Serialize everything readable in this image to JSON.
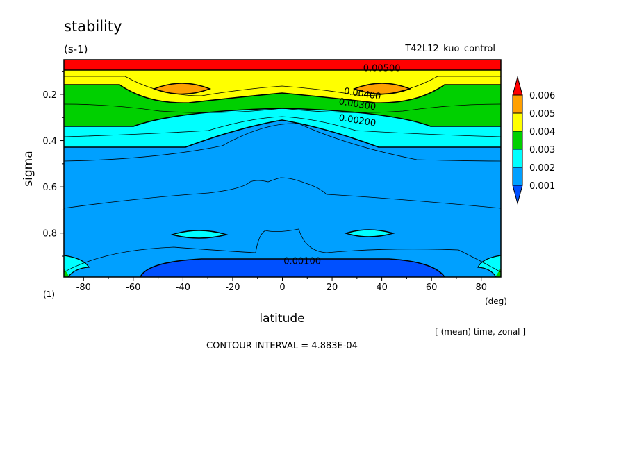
{
  "header": {
    "title": "stability",
    "units": "(s-1)",
    "run": "T42L12_kuo_control"
  },
  "footer": {
    "axis_unit_left": "(1)",
    "axis_unit_right": "(deg)",
    "mean_note": "[ (mean) time, zonal ]",
    "contour_interval": "CONTOUR INTERVAL = 4.883E-04"
  },
  "chart_data": {
    "type": "heatmap",
    "title": "stability",
    "units": "(s-1)",
    "xlabel": "latitude",
    "ylabel": "sigma",
    "xlim": [
      -87.9,
      87.9
    ],
    "ylim": [
      0.05,
      0.99
    ],
    "y_inverted": true,
    "x_ticks": [
      -80,
      -60,
      -40,
      -20,
      0,
      20,
      40,
      60,
      80
    ],
    "y_ticks": [
      0.2,
      0.4,
      0.6,
      0.8
    ],
    "y_tick_labels": [
      "0.2",
      "0.4",
      "0.6",
      "0.8"
    ],
    "x_tick_labels": [
      "-80",
      "-60",
      "-40",
      "-20",
      "0",
      "20",
      "40",
      "60",
      "80"
    ],
    "contour_interval": 0.0004883,
    "contour_labels": [
      {
        "text": "0.00500",
        "lat": 40,
        "sigma": 0.1
      },
      {
        "text": "0.00400",
        "lat": 32,
        "sigma": 0.21
      },
      {
        "text": "0.00300",
        "lat": 30,
        "sigma": 0.255
      },
      {
        "text": "0.00200",
        "lat": 30,
        "sigma": 0.325
      },
      {
        "text": "0.00100",
        "lat": 8,
        "sigma": 0.935
      }
    ],
    "colorbar": {
      "labels": [
        "0.001",
        "0.002",
        "0.003",
        "0.004",
        "0.005",
        "0.006"
      ],
      "colors": [
        "#0050ff",
        "#00a0ff",
        "#00ffff",
        "#00d000",
        "#ffff00",
        "#ffa000",
        "#ff0000"
      ]
    },
    "fill_bands": [
      {
        "name": "gt_0.006",
        "color": "#ff0000"
      },
      {
        "name": "0.004_0.005",
        "color": "#ffff00"
      },
      {
        "name": "0.003_0.004",
        "color": "#00d000"
      },
      {
        "name": "0.002_0.003",
        "color": "#00ffff"
      },
      {
        "name": "0.001_0.002",
        "color": "#00a0ff"
      },
      {
        "name": "lt_0.001",
        "color": "#0050ff"
      },
      {
        "name": "0.005_0.006",
        "color": "#ffa000"
      }
    ]
  }
}
